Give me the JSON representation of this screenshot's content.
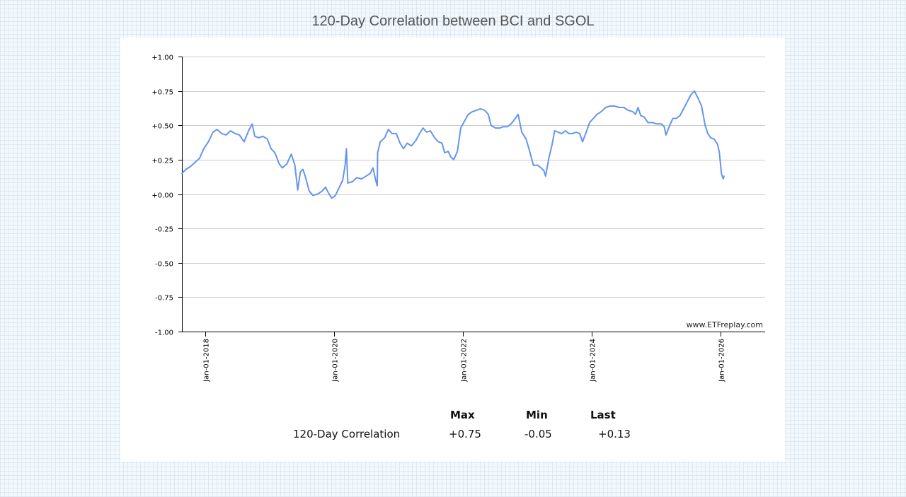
{
  "title": "120-Day Correlation between BCI and SGOL",
  "watermark": "www.ETFreplay.com",
  "colors": {
    "line": "#6495ed",
    "grid": "#cccccc",
    "axis": "#000000"
  },
  "chart_data": {
    "type": "line",
    "title": "120-Day Correlation between BCI and SGOL",
    "ylim": [
      -1.0,
      1.0
    ],
    "xlim": [
      "2017-08-23",
      "2026-09-10"
    ],
    "grid": true,
    "y_ticks": [
      {
        "value": 1.0,
        "label": "+1.00"
      },
      {
        "value": 0.75,
        "label": "+0.75"
      },
      {
        "value": 0.5,
        "label": "+0.50"
      },
      {
        "value": 0.25,
        "label": "+0.25"
      },
      {
        "value": 0.0,
        "label": "+0.00"
      },
      {
        "value": -0.25,
        "label": "-0.25"
      },
      {
        "value": -0.5,
        "label": "-0.50"
      },
      {
        "value": -0.75,
        "label": "-0.75"
      },
      {
        "value": -1.0,
        "label": "-1.00"
      }
    ],
    "x_ticks": [
      {
        "date": "2018-01-01",
        "label": "Jan-01-2018"
      },
      {
        "date": "2020-01-01",
        "label": "Jan-01-2020"
      },
      {
        "date": "2022-01-01",
        "label": "Jan-01-2022"
      },
      {
        "date": "2024-01-01",
        "label": "Jan-01-2024"
      },
      {
        "date": "2026-01-01",
        "label": "Jan-01-2026"
      }
    ],
    "series": [
      {
        "points": [
          [
            "2017-08-23",
            0.15
          ],
          [
            "2017-09-15",
            0.18
          ],
          [
            "2017-10-10",
            0.2
          ],
          [
            "2017-11-05",
            0.23
          ],
          [
            "2017-12-01",
            0.26
          ],
          [
            "2017-12-25",
            0.33
          ],
          [
            "2018-01-20",
            0.38
          ],
          [
            "2018-02-15",
            0.45
          ],
          [
            "2018-03-10",
            0.47
          ],
          [
            "2018-04-05",
            0.44
          ],
          [
            "2018-05-01",
            0.43
          ],
          [
            "2018-05-25",
            0.46
          ],
          [
            "2018-06-20",
            0.44
          ],
          [
            "2018-07-15",
            0.43
          ],
          [
            "2018-08-10",
            0.38
          ],
          [
            "2018-09-05",
            0.46
          ],
          [
            "2018-09-25",
            0.51
          ],
          [
            "2018-10-10",
            0.42
          ],
          [
            "2018-11-01",
            0.41
          ],
          [
            "2018-11-25",
            0.42
          ],
          [
            "2018-12-20",
            0.4
          ],
          [
            "2019-01-10",
            0.33
          ],
          [
            "2019-02-01",
            0.3
          ],
          [
            "2019-02-25",
            0.22
          ],
          [
            "2019-03-15",
            0.19
          ],
          [
            "2019-04-10",
            0.22
          ],
          [
            "2019-05-05",
            0.29
          ],
          [
            "2019-05-25",
            0.21
          ],
          [
            "2019-06-10",
            0.03
          ],
          [
            "2019-06-25",
            0.16
          ],
          [
            "2019-07-10",
            0.18
          ],
          [
            "2019-07-25",
            0.12
          ],
          [
            "2019-08-15",
            0.02
          ],
          [
            "2019-09-05",
            -0.01
          ],
          [
            "2019-10-01",
            0.0
          ],
          [
            "2019-10-25",
            0.02
          ],
          [
            "2019-11-15",
            0.05
          ],
          [
            "2019-12-01",
            0.01
          ],
          [
            "2019-12-20",
            -0.03
          ],
          [
            "2020-01-10",
            -0.01
          ],
          [
            "2020-02-01",
            0.05
          ],
          [
            "2020-02-20",
            0.1
          ],
          [
            "2020-03-05",
            0.21
          ],
          [
            "2020-03-12",
            0.33
          ],
          [
            "2020-03-20",
            0.08
          ],
          [
            "2020-04-15",
            0.09
          ],
          [
            "2020-05-10",
            0.12
          ],
          [
            "2020-06-05",
            0.11
          ],
          [
            "2020-07-01",
            0.13
          ],
          [
            "2020-07-25",
            0.15
          ],
          [
            "2020-08-10",
            0.19
          ],
          [
            "2020-08-25",
            0.1
          ],
          [
            "2020-09-03",
            0.06
          ],
          [
            "2020-09-05",
            0.3
          ],
          [
            "2020-09-20",
            0.38
          ],
          [
            "2020-10-15",
            0.41
          ],
          [
            "2020-11-05",
            0.47
          ],
          [
            "2020-11-25",
            0.44
          ],
          [
            "2020-12-20",
            0.44
          ],
          [
            "2021-01-10",
            0.37
          ],
          [
            "2021-01-30",
            0.33
          ],
          [
            "2021-02-20",
            0.37
          ],
          [
            "2021-03-15",
            0.35
          ],
          [
            "2021-04-10",
            0.39
          ],
          [
            "2021-05-01",
            0.44
          ],
          [
            "2021-05-20",
            0.48
          ],
          [
            "2021-06-10",
            0.45
          ],
          [
            "2021-07-01",
            0.46
          ],
          [
            "2021-07-25",
            0.41
          ],
          [
            "2021-08-15",
            0.38
          ],
          [
            "2021-09-05",
            0.37
          ],
          [
            "2021-09-20",
            0.3
          ],
          [
            "2021-10-10",
            0.31
          ],
          [
            "2021-10-25",
            0.27
          ],
          [
            "2021-11-10",
            0.25
          ],
          [
            "2021-12-01",
            0.31
          ],
          [
            "2021-12-20",
            0.48
          ],
          [
            "2022-01-10",
            0.53
          ],
          [
            "2022-02-01",
            0.58
          ],
          [
            "2022-02-25",
            0.6
          ],
          [
            "2022-03-20",
            0.61
          ],
          [
            "2022-04-10",
            0.62
          ],
          [
            "2022-05-05",
            0.61
          ],
          [
            "2022-05-25",
            0.58
          ],
          [
            "2022-06-10",
            0.5
          ],
          [
            "2022-07-05",
            0.48
          ],
          [
            "2022-07-30",
            0.48
          ],
          [
            "2022-08-20",
            0.49
          ],
          [
            "2022-09-10",
            0.49
          ],
          [
            "2022-10-01",
            0.51
          ],
          [
            "2022-10-25",
            0.55
          ],
          [
            "2022-11-10",
            0.58
          ],
          [
            "2022-12-01",
            0.45
          ],
          [
            "2022-12-25",
            0.4
          ],
          [
            "2023-01-15",
            0.31
          ],
          [
            "2023-02-05",
            0.21
          ],
          [
            "2023-03-01",
            0.21
          ],
          [
            "2023-03-20",
            0.19
          ],
          [
            "2023-04-05",
            0.17
          ],
          [
            "2023-04-15",
            0.13
          ],
          [
            "2023-05-05",
            0.27
          ],
          [
            "2023-05-20",
            0.35
          ],
          [
            "2023-06-05",
            0.46
          ],
          [
            "2023-06-25",
            0.45
          ],
          [
            "2023-07-15",
            0.44
          ],
          [
            "2023-08-05",
            0.46
          ],
          [
            "2023-08-25",
            0.44
          ],
          [
            "2023-09-15",
            0.44
          ],
          [
            "2023-10-05",
            0.45
          ],
          [
            "2023-10-25",
            0.44
          ],
          [
            "2023-11-10",
            0.38
          ],
          [
            "2023-12-01",
            0.45
          ],
          [
            "2023-12-20",
            0.52
          ],
          [
            "2024-01-10",
            0.55
          ],
          [
            "2024-02-01",
            0.58
          ],
          [
            "2024-02-25",
            0.6
          ],
          [
            "2024-03-20",
            0.63
          ],
          [
            "2024-04-15",
            0.64
          ],
          [
            "2024-05-10",
            0.64
          ],
          [
            "2024-06-05",
            0.63
          ],
          [
            "2024-07-01",
            0.63
          ],
          [
            "2024-07-25",
            0.61
          ],
          [
            "2024-08-20",
            0.6
          ],
          [
            "2024-09-05",
            0.58
          ],
          [
            "2024-09-20",
            0.63
          ],
          [
            "2024-10-05",
            0.57
          ],
          [
            "2024-10-25",
            0.56
          ],
          [
            "2024-11-15",
            0.52
          ],
          [
            "2024-12-10",
            0.52
          ],
          [
            "2025-01-05",
            0.51
          ],
          [
            "2025-01-30",
            0.51
          ],
          [
            "2025-02-15",
            0.49
          ],
          [
            "2025-02-25",
            0.43
          ],
          [
            "2025-03-15",
            0.49
          ],
          [
            "2025-04-05",
            0.55
          ],
          [
            "2025-04-25",
            0.55
          ],
          [
            "2025-05-15",
            0.57
          ],
          [
            "2025-06-05",
            0.62
          ],
          [
            "2025-06-25",
            0.67
          ],
          [
            "2025-07-15",
            0.72
          ],
          [
            "2025-08-05",
            0.75
          ],
          [
            "2025-08-25",
            0.7
          ],
          [
            "2025-09-15",
            0.64
          ],
          [
            "2025-10-05",
            0.5
          ],
          [
            "2025-10-20",
            0.44
          ],
          [
            "2025-11-05",
            0.41
          ],
          [
            "2025-11-25",
            0.4
          ],
          [
            "2025-12-15",
            0.36
          ],
          [
            "2025-12-25",
            0.3
          ],
          [
            "2026-01-05",
            0.15
          ],
          [
            "2026-01-15",
            0.11
          ],
          [
            "2026-01-20",
            0.13
          ]
        ]
      }
    ]
  },
  "stats": {
    "headers": [
      "Max",
      "Min",
      "Last"
    ],
    "rows": [
      {
        "label": "120-Day Correlation",
        "max": "+0.75",
        "min": "-0.05",
        "last": "+0.13"
      }
    ]
  }
}
